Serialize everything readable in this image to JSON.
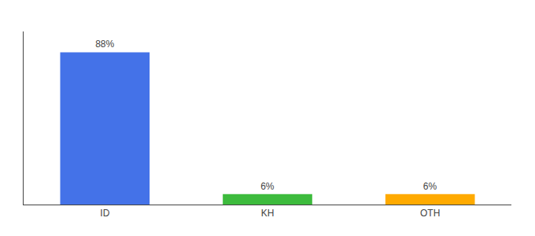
{
  "chart_data": {
    "type": "bar",
    "categories": [
      "ID",
      "KH",
      "OTH"
    ],
    "values": [
      88,
      6,
      6
    ],
    "value_labels": [
      "88%",
      "6%",
      "6%"
    ],
    "colors": [
      "#4472e8",
      "#3dbb3d",
      "#ffaa00"
    ],
    "ylim": [
      0,
      100
    ],
    "data_labels": true,
    "tick_labels": "x",
    "grid": false
  }
}
